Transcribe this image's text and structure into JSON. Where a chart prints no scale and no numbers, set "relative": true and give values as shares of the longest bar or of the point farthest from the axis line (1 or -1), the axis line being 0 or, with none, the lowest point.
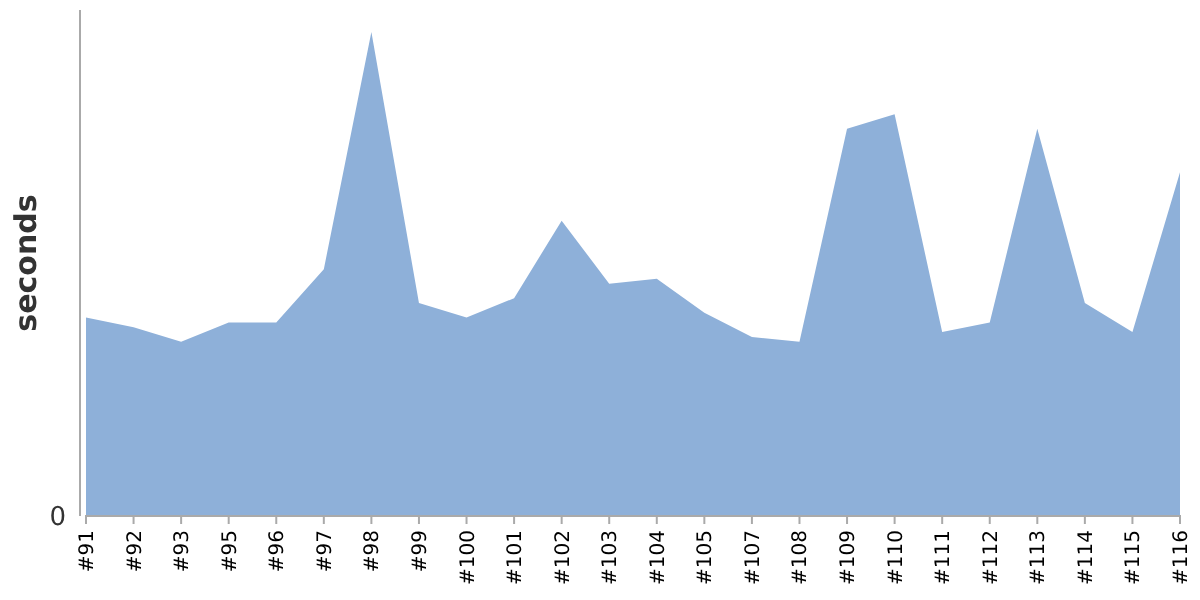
{
  "chart_data": {
    "type": "area",
    "ylabel": "seconds",
    "relative": true,
    "annotations": [
      "0"
    ],
    "categories": [
      "#91",
      "#92",
      "#93",
      "#95",
      "#96",
      "#97",
      "#98",
      "#99",
      "#100",
      "#101",
      "#102",
      "#103",
      "#104",
      "#105",
      "#107",
      "#108",
      "#109",
      "#110",
      "#111",
      "#112",
      "#113",
      "#114",
      "#115",
      "#116"
    ],
    "series": [
      {
        "color": "#8eb0d9",
        "values": [
          0.41,
          0.39,
          0.36,
          0.4,
          0.4,
          0.51,
          1,
          0.44,
          0.41,
          0.45,
          0.61,
          0.48,
          0.49,
          0.42,
          0.37,
          0.36,
          0.8,
          0.83,
          0.38,
          0.4,
          0.8,
          0.44,
          0.38,
          0.71
        ]
      }
    ]
  }
}
